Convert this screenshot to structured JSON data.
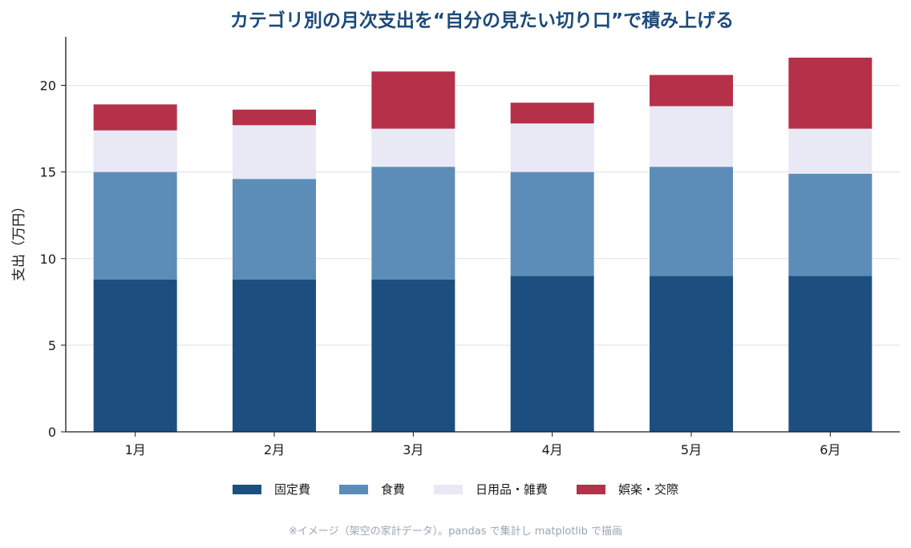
{
  "chart_data": {
    "type": "bar",
    "stacked": true,
    "title": "カテゴリ別の月次支出を“自分の見たい切り口”で積み上げる",
    "xlabel": "",
    "ylabel": "支出（万円）",
    "ylim": [
      0,
      22.8
    ],
    "yticks": [
      0,
      5,
      10,
      15,
      20
    ],
    "grid": "y",
    "legend_position": "bottom-center",
    "categories": [
      "1月",
      "2月",
      "3月",
      "4月",
      "5月",
      "6月"
    ],
    "series": [
      {
        "name": "固定費",
        "color": "#1c4f80",
        "values": [
          8.8,
          8.8,
          8.8,
          9.0,
          9.0,
          9.0
        ]
      },
      {
        "name": "食費",
        "color": "#5b8db8",
        "values": [
          6.2,
          5.8,
          6.5,
          6.0,
          6.3,
          5.9
        ]
      },
      {
        "name": "日用品・雑費",
        "color": "#e8e9f5",
        "values": [
          2.4,
          3.1,
          2.2,
          2.8,
          3.5,
          2.6
        ]
      },
      {
        "name": "娯楽・交際",
        "color": "#b43149",
        "values": [
          1.5,
          0.9,
          3.3,
          1.2,
          1.8,
          4.1
        ]
      }
    ]
  },
  "footnote": "※イメージ（架空の家計データ）。pandas で集計し matplotlib で描画"
}
